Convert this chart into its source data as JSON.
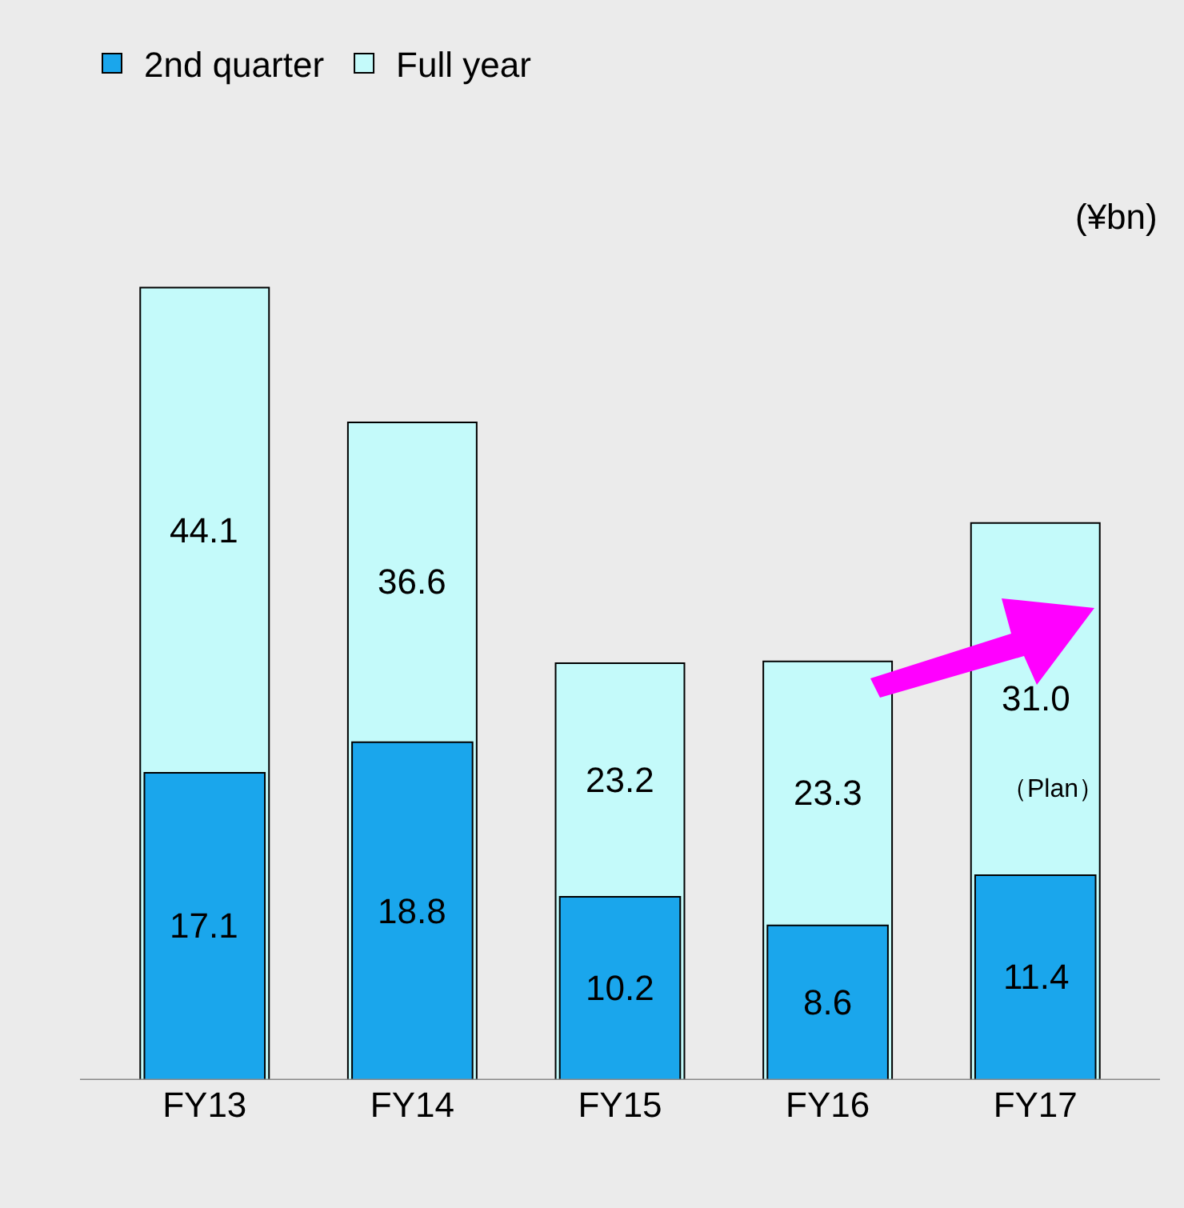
{
  "chart_data": {
    "type": "bar",
    "categories": [
      "FY13",
      "FY14",
      "FY15",
      "FY16",
      "FY17"
    ],
    "series": [
      {
        "name": "2nd quarter",
        "color": "#1aa6ec",
        "values": [
          17.1,
          18.8,
          10.2,
          8.6,
          11.4
        ],
        "value_labels": [
          "17.1",
          "18.8",
          "10.2",
          "8.6",
          "11.4"
        ]
      },
      {
        "name": "Full year",
        "color": "#c4fafa",
        "values": [
          44.1,
          36.6,
          23.2,
          23.3,
          31.0
        ],
        "value_labels": [
          "44.1",
          "36.6",
          "23.2",
          "23.3",
          "31.0"
        ]
      }
    ],
    "legend": "top left",
    "grid": false,
    "annotations": [
      "(¥bn)",
      "（Plan）"
    ]
  }
}
